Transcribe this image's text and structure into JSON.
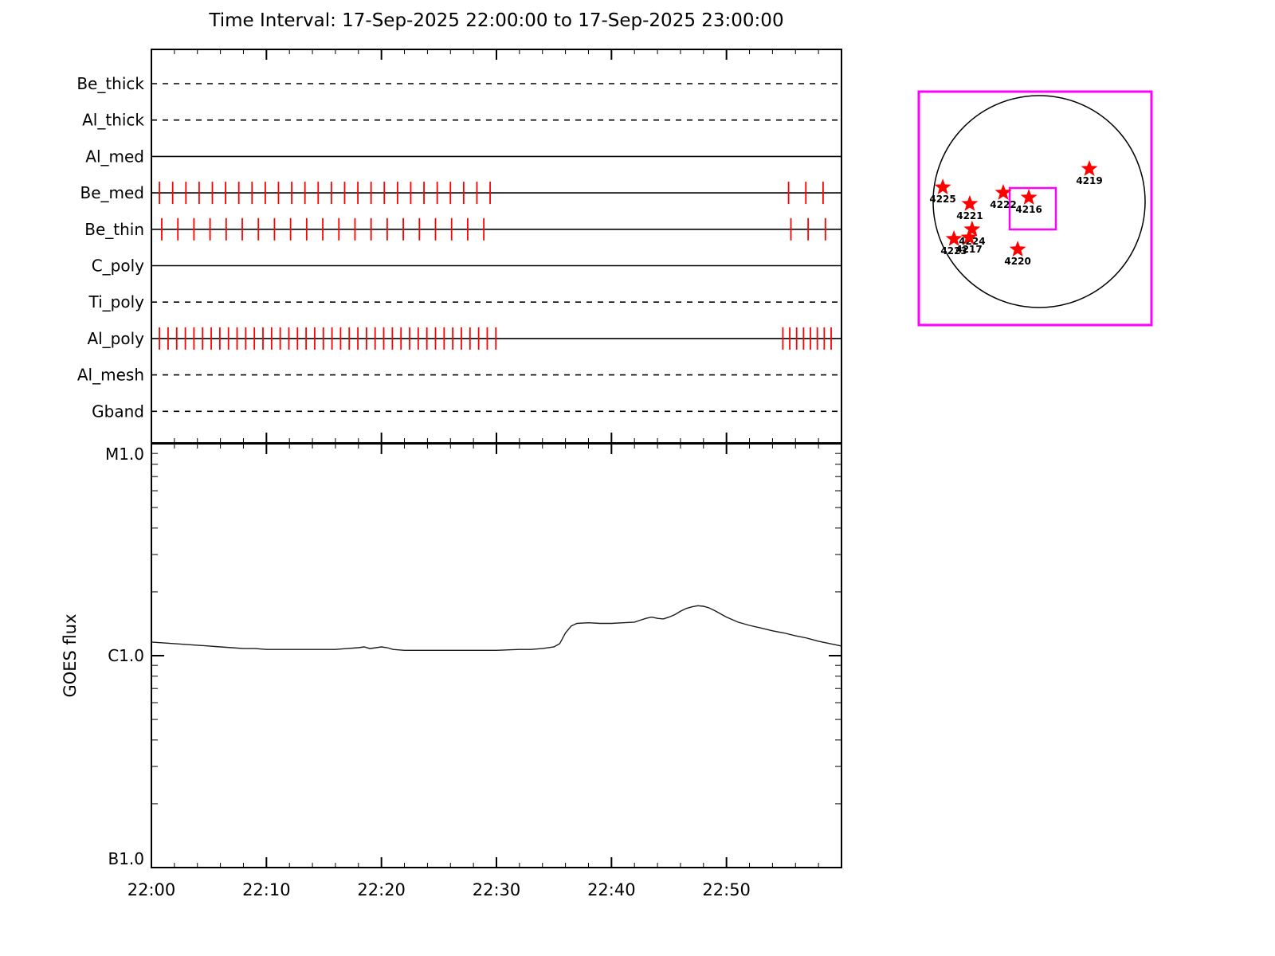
{
  "title": "Time Interval: 17-Sep-2025 22:00:00 to 17-Sep-2025 23:00:00",
  "colors": {
    "background": "#ffffff",
    "axis": "#000000",
    "curve": "#1a1a1a",
    "exposure_tick": "#ff0000",
    "star_fill": "#ff0000",
    "map_border": "#ff00ff",
    "fov_box": "#ff00ff"
  },
  "chart_data": [
    {
      "type": "timeline",
      "title": "Time Interval: 17-Sep-2025 22:00:00 to 17-Sep-2025 23:00:00",
      "x_start": "17-Sep-2025 22:00:00",
      "x_end": "17-Sep-2025 23:00:00",
      "x_range_minutes": [
        0,
        60
      ],
      "channels": [
        {
          "label": "Be_thick",
          "line_style": "dashed",
          "exposure_ticks_min": []
        },
        {
          "label": "Al_thick",
          "line_style": "dashed",
          "exposure_ticks_min": []
        },
        {
          "label": "Al_med",
          "line_style": "solid",
          "exposure_ticks_min": []
        },
        {
          "label": "Be_med",
          "line_style": "solid",
          "exposure_ticks_min": [
            0.7,
            1.85,
            3.0,
            4.15,
            5.3,
            6.45,
            7.6,
            8.75,
            9.9,
            11.05,
            12.2,
            13.35,
            14.5,
            15.65,
            16.8,
            17.95,
            19.1,
            20.25,
            21.4,
            22.55,
            23.7,
            24.85,
            26.0,
            27.15,
            28.3,
            29.45,
            55.4,
            56.9,
            58.4
          ]
        },
        {
          "label": "Be_thin",
          "line_style": "solid",
          "exposure_ticks_min": [
            0.9,
            2.3,
            3.7,
            5.1,
            6.5,
            7.9,
            9.3,
            10.7,
            12.1,
            13.5,
            14.9,
            16.3,
            17.7,
            19.1,
            20.5,
            21.9,
            23.3,
            24.7,
            26.1,
            27.5,
            28.9,
            55.6,
            57.1,
            58.6
          ]
        },
        {
          "label": "C_poly",
          "line_style": "solid",
          "exposure_ticks_min": []
        },
        {
          "label": "Ti_poly",
          "line_style": "dashed",
          "exposure_ticks_min": []
        },
        {
          "label": "Al_poly",
          "line_style": "solid",
          "exposure_ticks_min": [
            0.7,
            1.45,
            2.2,
            2.95,
            3.7,
            4.45,
            5.2,
            5.95,
            6.7,
            7.45,
            8.2,
            8.95,
            9.7,
            10.45,
            11.2,
            11.95,
            12.7,
            13.45,
            14.2,
            14.95,
            15.7,
            16.45,
            17.2,
            17.95,
            18.7,
            19.45,
            20.2,
            20.95,
            21.7,
            22.45,
            23.2,
            23.95,
            24.7,
            25.45,
            26.2,
            26.95,
            27.7,
            28.45,
            29.2,
            29.95,
            54.9,
            55.5,
            56.1,
            56.7,
            57.3,
            57.9,
            58.5,
            59.1
          ]
        },
        {
          "label": "Al_mesh",
          "line_style": "dashed",
          "exposure_ticks_min": []
        },
        {
          "label": "Gband",
          "line_style": "dashed",
          "exposure_ticks_min": []
        }
      ]
    },
    {
      "type": "line",
      "ylabel": "GOES flux",
      "y_scale": "log",
      "y_ticks": [
        {
          "label": "M1.0",
          "c_units": 10
        },
        {
          "label": "C1.0",
          "c_units": 1
        },
        {
          "label": "B1.0",
          "c_units": 0.1
        }
      ],
      "x_ticks": [
        {
          "label": "22:00",
          "minute": 0
        },
        {
          "label": "22:10",
          "minute": 10
        },
        {
          "label": "22:20",
          "minute": 20
        },
        {
          "label": "22:30",
          "minute": 30
        },
        {
          "label": "22:40",
          "minute": 40
        },
        {
          "label": "22:50",
          "minute": 50
        }
      ],
      "series": [
        {
          "name": "GOES flux",
          "points_min_cunits": [
            [
              0,
              1.16
            ],
            [
              1,
              1.15
            ],
            [
              2,
              1.14
            ],
            [
              3,
              1.13
            ],
            [
              4,
              1.12
            ],
            [
              5,
              1.11
            ],
            [
              6,
              1.1
            ],
            [
              7,
              1.09
            ],
            [
              8,
              1.08
            ],
            [
              9,
              1.08
            ],
            [
              10,
              1.07
            ],
            [
              12,
              1.07
            ],
            [
              14,
              1.07
            ],
            [
              16,
              1.07
            ],
            [
              17,
              1.08
            ],
            [
              18,
              1.09
            ],
            [
              18.5,
              1.1
            ],
            [
              19,
              1.08
            ],
            [
              20,
              1.1
            ],
            [
              20.5,
              1.09
            ],
            [
              21,
              1.07
            ],
            [
              22,
              1.06
            ],
            [
              24,
              1.06
            ],
            [
              26,
              1.06
            ],
            [
              28,
              1.06
            ],
            [
              30,
              1.06
            ],
            [
              32,
              1.07
            ],
            [
              33,
              1.07
            ],
            [
              34,
              1.08
            ],
            [
              35,
              1.1
            ],
            [
              35.5,
              1.14
            ],
            [
              36,
              1.28
            ],
            [
              36.5,
              1.38
            ],
            [
              37,
              1.42
            ],
            [
              38,
              1.43
            ],
            [
              39,
              1.42
            ],
            [
              40,
              1.42
            ],
            [
              41,
              1.43
            ],
            [
              42,
              1.44
            ],
            [
              42.5,
              1.47
            ],
            [
              43,
              1.5
            ],
            [
              43.5,
              1.52
            ],
            [
              44,
              1.5
            ],
            [
              44.5,
              1.49
            ],
            [
              45,
              1.52
            ],
            [
              45.5,
              1.56
            ],
            [
              46,
              1.62
            ],
            [
              46.5,
              1.67
            ],
            [
              47,
              1.7
            ],
            [
              47.5,
              1.72
            ],
            [
              48,
              1.71
            ],
            [
              48.5,
              1.68
            ],
            [
              49,
              1.63
            ],
            [
              50,
              1.52
            ],
            [
              51,
              1.44
            ],
            [
              52,
              1.39
            ],
            [
              53,
              1.35
            ],
            [
              54,
              1.31
            ],
            [
              55,
              1.28
            ],
            [
              56,
              1.24
            ],
            [
              57,
              1.21
            ],
            [
              58,
              1.17
            ],
            [
              59,
              1.14
            ],
            [
              60,
              1.11
            ]
          ]
        }
      ]
    },
    {
      "type": "scatter",
      "name": "solar-disk-map",
      "active_regions": [
        {
          "label": "4225",
          "fx": 0.103,
          "fy": 0.41
        },
        {
          "label": "4221",
          "fx": 0.219,
          "fy": 0.481
        },
        {
          "label": "4222",
          "fx": 0.363,
          "fy": 0.433
        },
        {
          "label": "4216",
          "fx": 0.473,
          "fy": 0.454
        },
        {
          "label": "4219",
          "fx": 0.733,
          "fy": 0.331
        },
        {
          "label": "4224",
          "fx": 0.229,
          "fy": 0.59
        },
        {
          "label": "4223",
          "fx": 0.151,
          "fy": 0.631
        },
        {
          "label": "4217",
          "fx": 0.216,
          "fy": 0.625
        },
        {
          "label": "4220",
          "fx": 0.425,
          "fy": 0.676
        }
      ]
    }
  ]
}
